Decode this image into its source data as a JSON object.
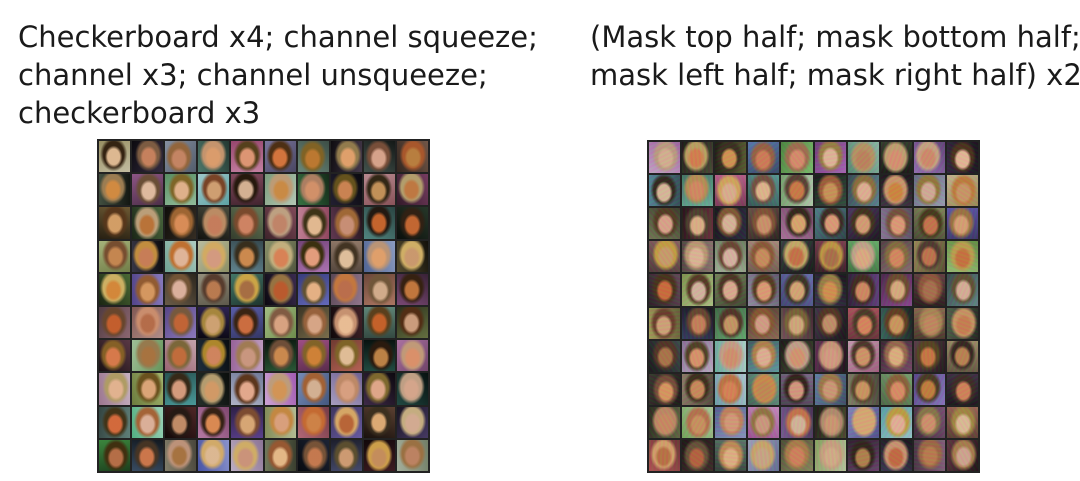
{
  "left_panel": {
    "caption_lines": [
      "Checkerboard x4; channel squeeze;",
      "channel x3; channel unsqueeze;",
      "checkerboard x3"
    ],
    "grid_rows": 10,
    "grid_cols": 10
  },
  "right_panel": {
    "caption_lines": [
      "(Mask top half; mask bottom half;",
      "mask left half; mask right half) x2"
    ],
    "grid_rows": 10,
    "grid_cols": 10
  }
}
